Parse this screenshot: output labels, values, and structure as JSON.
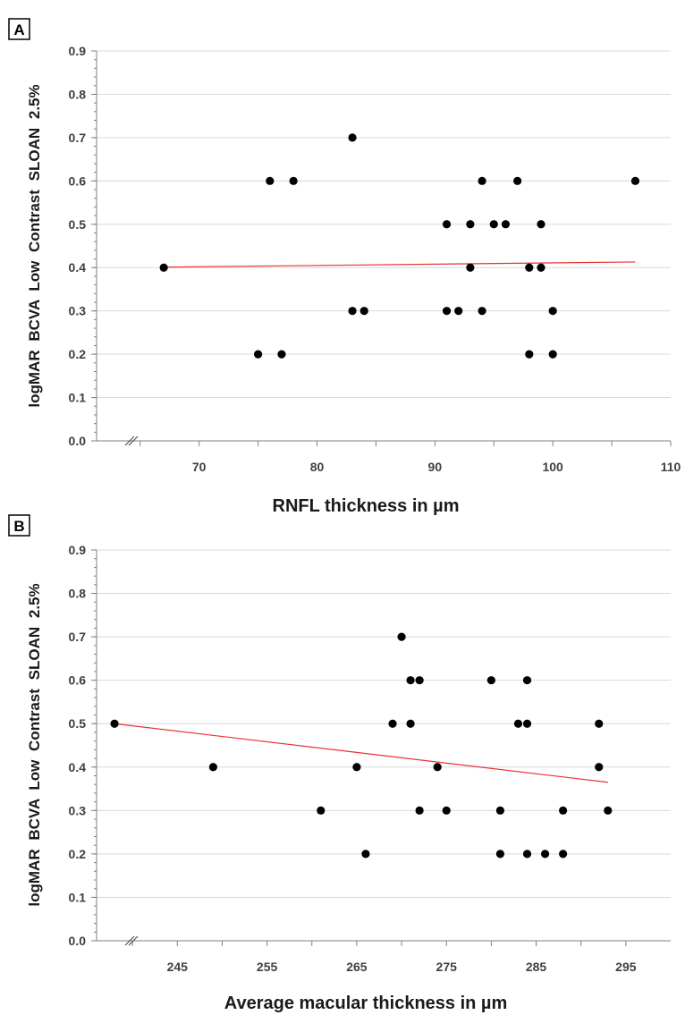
{
  "chart_data": [
    {
      "type": "scatter",
      "panel_label": "A",
      "xlabel": "RNFL thickness in µm",
      "ylabel": "logMAR  BCVA  Low  Contrast  SLOAN  2.5%",
      "xlim": [
        61.3,
        110
      ],
      "ylim": [
        0,
        0.9
      ],
      "x_ticks": [
        70,
        80,
        90,
        100,
        110
      ],
      "y_ticks": [
        0.0,
        0.1,
        0.2,
        0.3,
        0.4,
        0.5,
        0.6,
        0.7,
        0.8,
        0.9
      ],
      "grid": "horizontal",
      "axis_break": true,
      "series": [
        {
          "points": [
            [
              67,
              0.4
            ],
            [
              75,
              0.2
            ],
            [
              76,
              0.6
            ],
            [
              77,
              0.2
            ],
            [
              78,
              0.6
            ],
            [
              83,
              0.7
            ],
            [
              83,
              0.3
            ],
            [
              84,
              0.3
            ],
            [
              91,
              0.5
            ],
            [
              91,
              0.3
            ],
            [
              92,
              0.3
            ],
            [
              93,
              0.5
            ],
            [
              93,
              0.4
            ],
            [
              94,
              0.6
            ],
            [
              94,
              0.3
            ],
            [
              95,
              0.5
            ],
            [
              96,
              0.5
            ],
            [
              97,
              0.6
            ],
            [
              98,
              0.4
            ],
            [
              98,
              0.2
            ],
            [
              99,
              0.5
            ],
            [
              99,
              0.4
            ],
            [
              100,
              0.3
            ],
            [
              100,
              0.2
            ],
            [
              107,
              0.6
            ]
          ]
        }
      ],
      "trendline": {
        "x": [
          67,
          107
        ],
        "y": [
          0.401,
          0.413
        ],
        "color": "#e8312f"
      }
    },
    {
      "type": "scatter",
      "panel_label": "B",
      "xlabel": "Average macular thickness in µm",
      "ylabel": "logMAR  BCVA  Low  Contrast  SLOAN  2.5%",
      "xlim": [
        236,
        300
      ],
      "ylim": [
        0,
        0.9
      ],
      "x_ticks": [
        245,
        255,
        265,
        275,
        285,
        295
      ],
      "y_ticks": [
        0.0,
        0.1,
        0.2,
        0.3,
        0.4,
        0.5,
        0.6,
        0.7,
        0.8,
        0.9
      ],
      "grid": "horizontal",
      "axis_break": true,
      "series": [
        {
          "points": [
            [
              238,
              0.5
            ],
            [
              249,
              0.4
            ],
            [
              261,
              0.3
            ],
            [
              265,
              0.4
            ],
            [
              266,
              0.2
            ],
            [
              269,
              0.5
            ],
            [
              270,
              0.7
            ],
            [
              271,
              0.6
            ],
            [
              271,
              0.5
            ],
            [
              272,
              0.6
            ],
            [
              272,
              0.3
            ],
            [
              274,
              0.4
            ],
            [
              275,
              0.3
            ],
            [
              280,
              0.6
            ],
            [
              281,
              0.3
            ],
            [
              281,
              0.2
            ],
            [
              283,
              0.5
            ],
            [
              284,
              0.6
            ],
            [
              284,
              0.5
            ],
            [
              284,
              0.2
            ],
            [
              286,
              0.2
            ],
            [
              288,
              0.3
            ],
            [
              288,
              0.2
            ],
            [
              292,
              0.5
            ],
            [
              292,
              0.4
            ],
            [
              293,
              0.3
            ]
          ]
        }
      ],
      "trendline": {
        "x": [
          238,
          293
        ],
        "y": [
          0.5,
          0.365
        ],
        "color": "#e8312f"
      }
    }
  ]
}
